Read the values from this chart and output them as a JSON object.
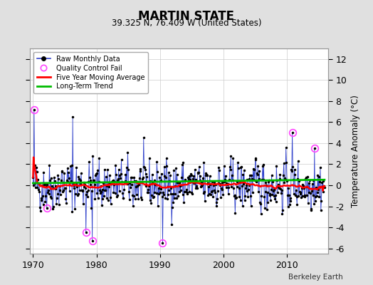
{
  "title": "MARTIN STATE",
  "subtitle": "39.325 N, 76.409 W (United States)",
  "ylabel": "Temperature Anomaly (°C)",
  "credit": "Berkeley Earth",
  "xlim": [
    1969.5,
    2016.5
  ],
  "ylim": [
    -6.5,
    13
  ],
  "yticks": [
    -6,
    -4,
    -2,
    0,
    2,
    4,
    6,
    8,
    10,
    12
  ],
  "xticks": [
    1970,
    1980,
    1990,
    2000,
    2010
  ],
  "bg_color": "#e0e0e0",
  "plot_bg_color": "#ffffff",
  "raw_color": "#3344cc",
  "dot_color": "#000000",
  "ma_color": "#ff0000",
  "trend_color": "#00bb00",
  "qc_color": "#ff44ff",
  "seed": 42,
  "n_months": 552,
  "start_year": 1970.0
}
